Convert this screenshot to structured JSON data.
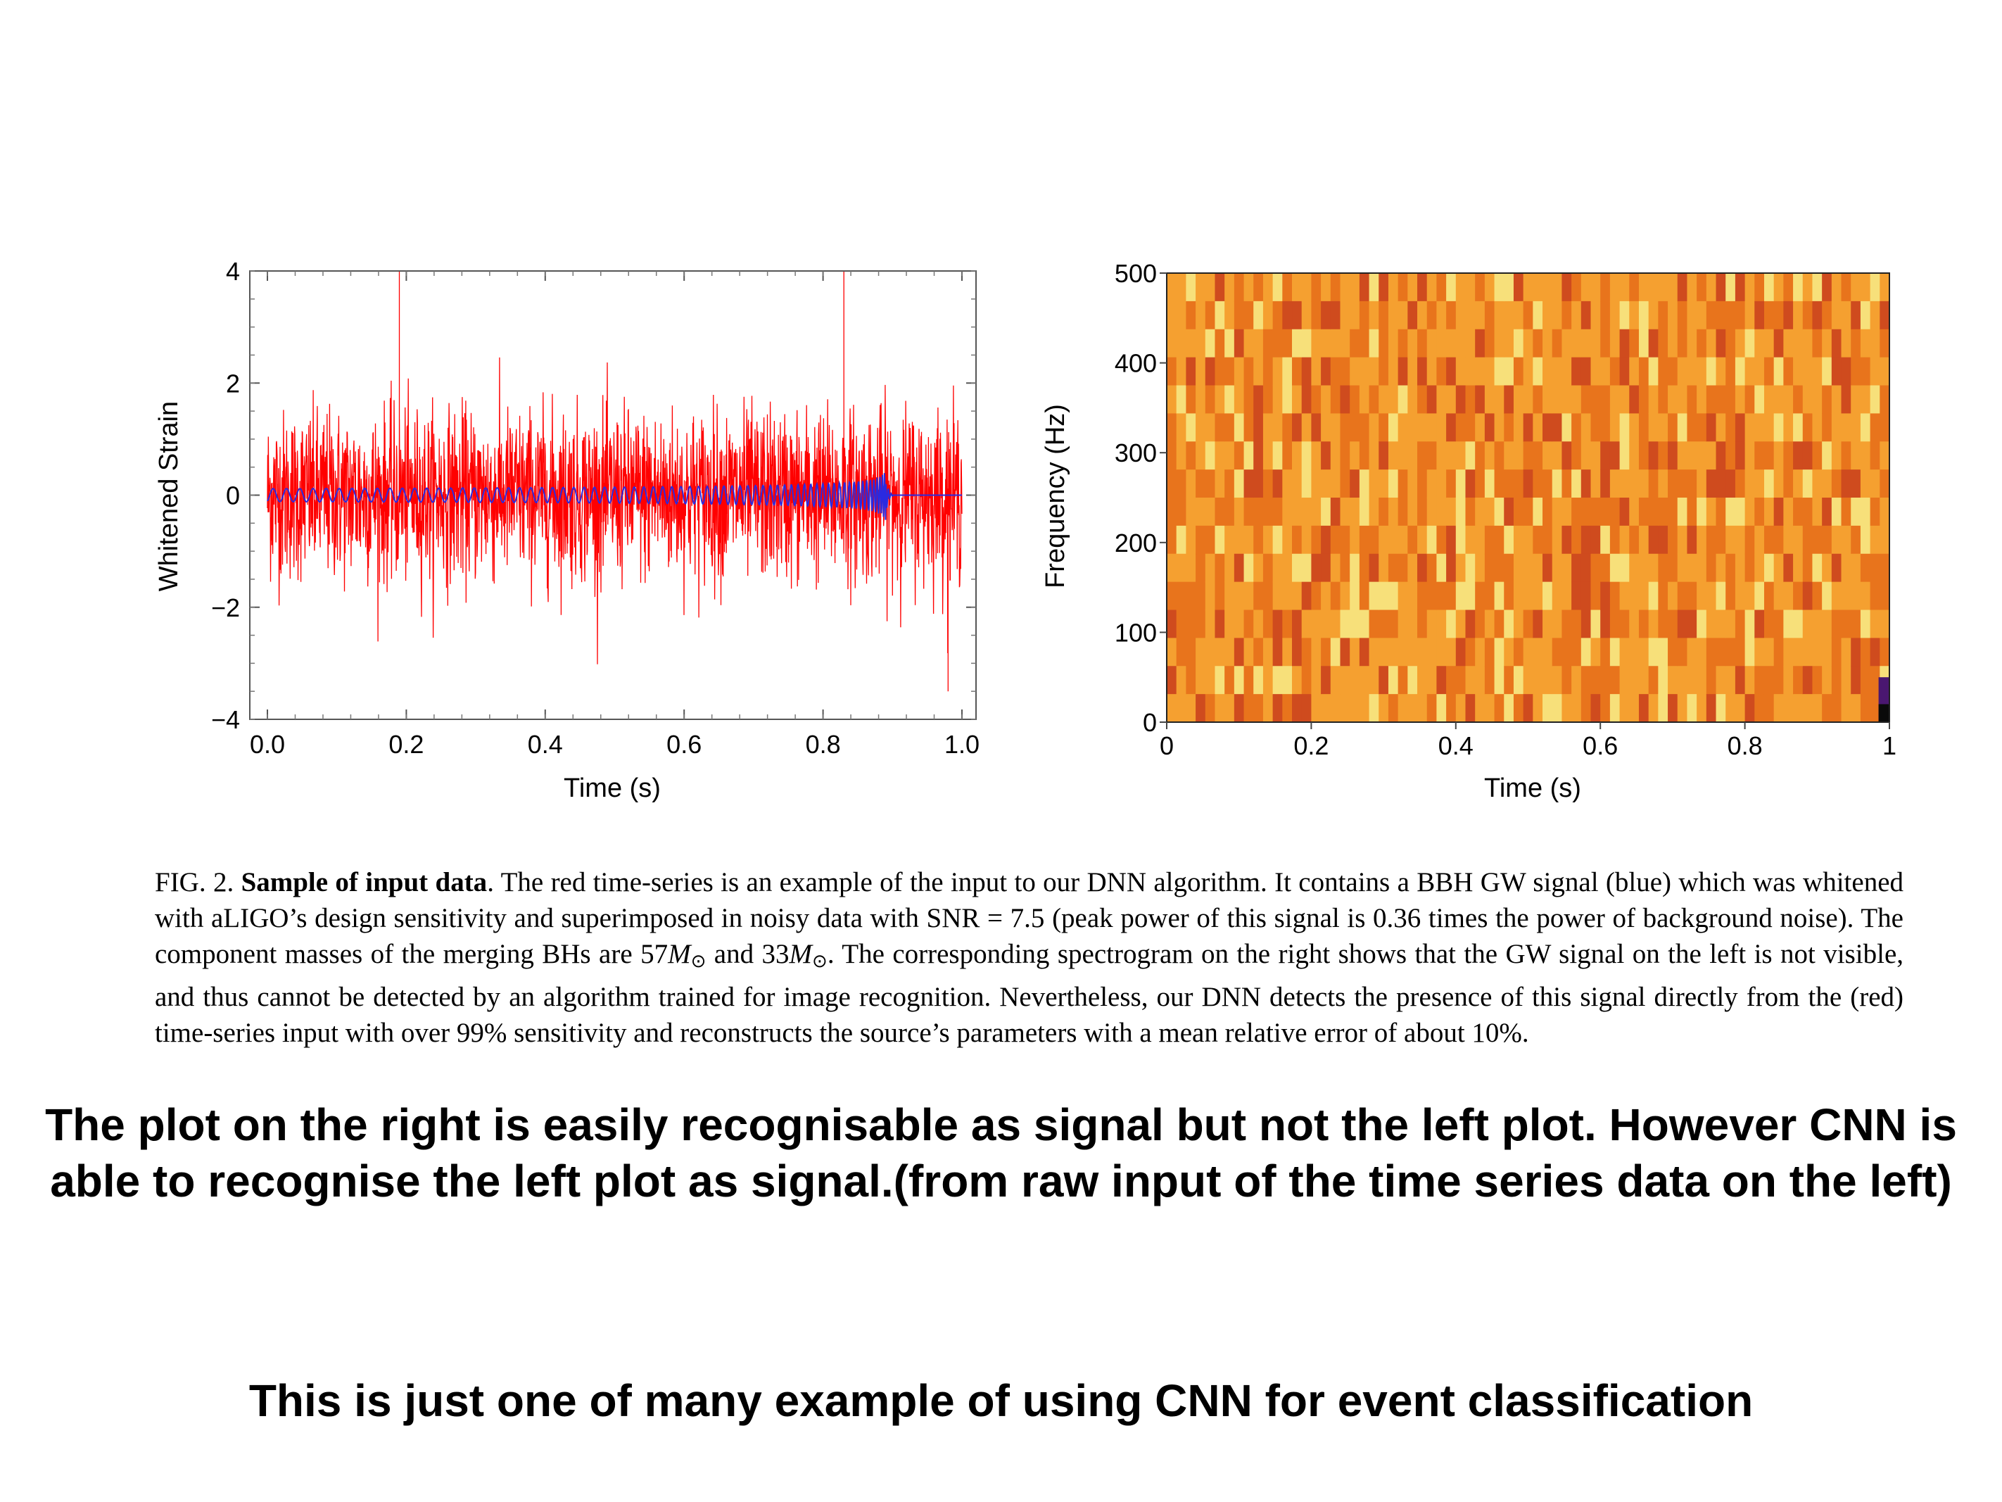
{
  "chart_data": [
    {
      "type": "line",
      "xlabel": "Time (s)",
      "ylabel": "Whitened Strain",
      "xlim": [
        0.0,
        1.0
      ],
      "ylim": [
        -4,
        4
      ],
      "x_ticks": [
        "0.0",
        "0.2",
        "0.4",
        "0.6",
        "0.8",
        "1.0"
      ],
      "y_ticks": [
        "4",
        "2",
        "0",
        "−2",
        "−4"
      ],
      "grid": false,
      "series": [
        {
          "description": "noisy whitened strain time series",
          "color": "#ff0000",
          "x_range": [
            0.0,
            1.0
          ],
          "approx_amplitude_std": 0.75,
          "notable_peaks": [
            {
              "x": 0.19,
              "y": 4.0
            },
            {
              "x": 0.83,
              "y": 4.0
            },
            {
              "x": 0.98,
              "y": -3.5
            }
          ]
        },
        {
          "description": "BBH GW chirp signal",
          "color": "#2a2ae0",
          "x_range": [
            0.0,
            1.0
          ],
          "merger_time": 0.89,
          "peak_amplitude": 0.45,
          "ringdown_end": 0.9
        }
      ]
    },
    {
      "type": "heatmap",
      "xlabel": "Time (s)",
      "ylabel": "Frequency (Hz)",
      "xlim": [
        0,
        1
      ],
      "ylim": [
        0,
        500
      ],
      "x_ticks": [
        "0",
        "0.2",
        "0.4",
        "0.6",
        "0.8",
        "1"
      ],
      "y_ticks": [
        "500",
        "400",
        "300",
        "200",
        "100",
        "0"
      ],
      "colormap": [
        "#f7e07a",
        "#f5a030",
        "#e8741c",
        "#cf4b1e"
      ],
      "note": "spectrogram shows no visible signal; small dark purple patch at 0.99–1.0 s, 0–50 Hz",
      "highlight": {
        "x": [
          0.985,
          1.0
        ],
        "y": [
          0,
          50
        ],
        "color": "#4a1770"
      }
    }
  ],
  "caption": {
    "fig_label": "FIG. 2.",
    "bold_title": "Sample of input data",
    "text_1": ". The red time-series is an example of the input to our DNN algorithm. It contains a BBH GW signal (blue) which was whitened with aLIGO’s design sensitivity and superimposed in noisy data with SNR = 7.5 (peak power of this signal is 0.36 times the power of background noise). The component masses of the merging BHs are ",
    "mass_1": "57",
    "mass_2": "33",
    "m_symbol": "M",
    "sun_symbol": "⊙",
    "text_and": " and ",
    "text_2": ". The corresponding spectrogram on the right shows that the GW signal on the left is not visible, and thus cannot be detected by an algorithm trained for image recognition. Nevertheless, our DNN detects the presence of this signal directly from the (red) time-series input with over 99% sensitivity and reconstructs the source’s parameters with a mean relative error of about 10%."
  },
  "notes": {
    "note_1": "The plot on the right is easily recognisable as signal but not the left plot. However CNN is able to recognise the left plot as signal.(from raw input of the time series data on the left)",
    "note_2": "This is just one of many example of using CNN for event classification"
  }
}
